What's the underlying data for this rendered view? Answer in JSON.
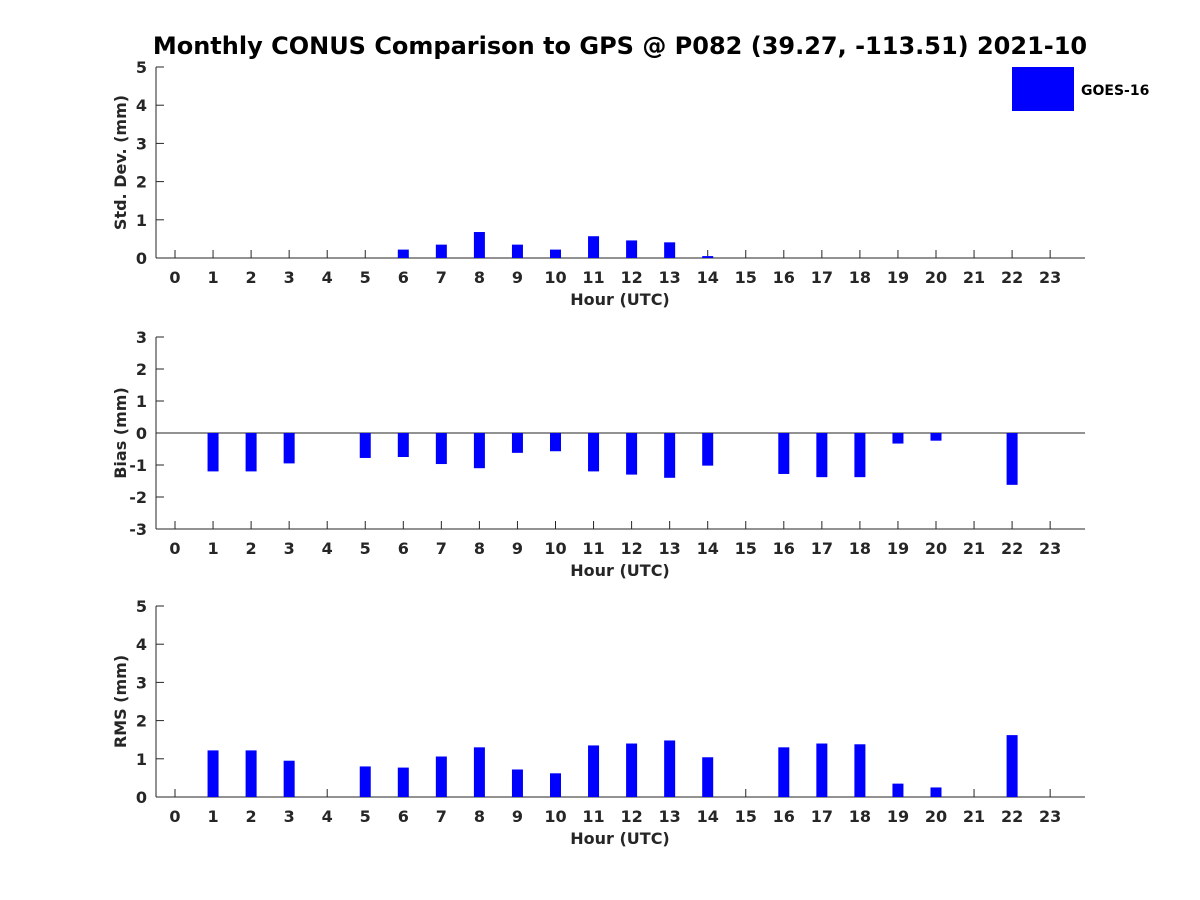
{
  "title": "Monthly CONUS Comparison to GPS @ P082 (39.27, -113.51) 2021-10",
  "legend": {
    "label": "GOES-16",
    "color": "#0000ff",
    "placement": "top-right"
  },
  "chart_data": [
    {
      "type": "bar",
      "xlabel": "Hour (UTC)",
      "ylabel": "Std. Dev. (mm)",
      "ylim": [
        0,
        5
      ],
      "yticks": [
        0,
        1,
        2,
        3,
        4,
        5
      ],
      "categories": [
        0,
        1,
        2,
        3,
        4,
        5,
        6,
        7,
        8,
        9,
        10,
        11,
        12,
        13,
        14,
        15,
        16,
        17,
        18,
        19,
        20,
        21,
        22,
        23
      ],
      "series": [
        {
          "name": "GOES-16",
          "color": "#0000ff",
          "values": [
            null,
            null,
            null,
            null,
            null,
            null,
            0.22,
            0.35,
            0.68,
            0.35,
            0.22,
            0.57,
            0.46,
            0.41,
            0.05,
            null,
            null,
            null,
            null,
            null,
            null,
            null,
            null,
            null
          ]
        }
      ]
    },
    {
      "type": "bar",
      "xlabel": "Hour (UTC)",
      "ylabel": "Bias (mm)",
      "ylim": [
        -3,
        3
      ],
      "yticks": [
        -3,
        -2,
        -1,
        0,
        1,
        2,
        3
      ],
      "categories": [
        0,
        1,
        2,
        3,
        4,
        5,
        6,
        7,
        8,
        9,
        10,
        11,
        12,
        13,
        14,
        15,
        16,
        17,
        18,
        19,
        20,
        21,
        22,
        23
      ],
      "series": [
        {
          "name": "GOES-16",
          "color": "#0000ff",
          "values": [
            null,
            -1.2,
            -1.2,
            -0.95,
            null,
            -0.78,
            -0.75,
            -0.97,
            -1.1,
            -0.62,
            -0.57,
            -1.2,
            -1.3,
            -1.4,
            -1.02,
            null,
            -1.28,
            -1.38,
            -1.38,
            -0.33,
            -0.24,
            null,
            -1.62,
            null
          ]
        }
      ]
    },
    {
      "type": "bar",
      "xlabel": "Hour (UTC)",
      "ylabel": "RMS (mm)",
      "ylim": [
        0,
        5
      ],
      "yticks": [
        0,
        1,
        2,
        3,
        4,
        5
      ],
      "categories": [
        0,
        1,
        2,
        3,
        4,
        5,
        6,
        7,
        8,
        9,
        10,
        11,
        12,
        13,
        14,
        15,
        16,
        17,
        18,
        19,
        20,
        21,
        22,
        23
      ],
      "series": [
        {
          "name": "GOES-16",
          "color": "#0000ff",
          "values": [
            null,
            1.22,
            1.22,
            0.95,
            null,
            0.8,
            0.77,
            1.06,
            1.3,
            0.72,
            0.62,
            1.35,
            1.4,
            1.48,
            1.04,
            null,
            1.3,
            1.4,
            1.38,
            0.35,
            0.25,
            null,
            1.62,
            null
          ]
        }
      ]
    }
  ]
}
